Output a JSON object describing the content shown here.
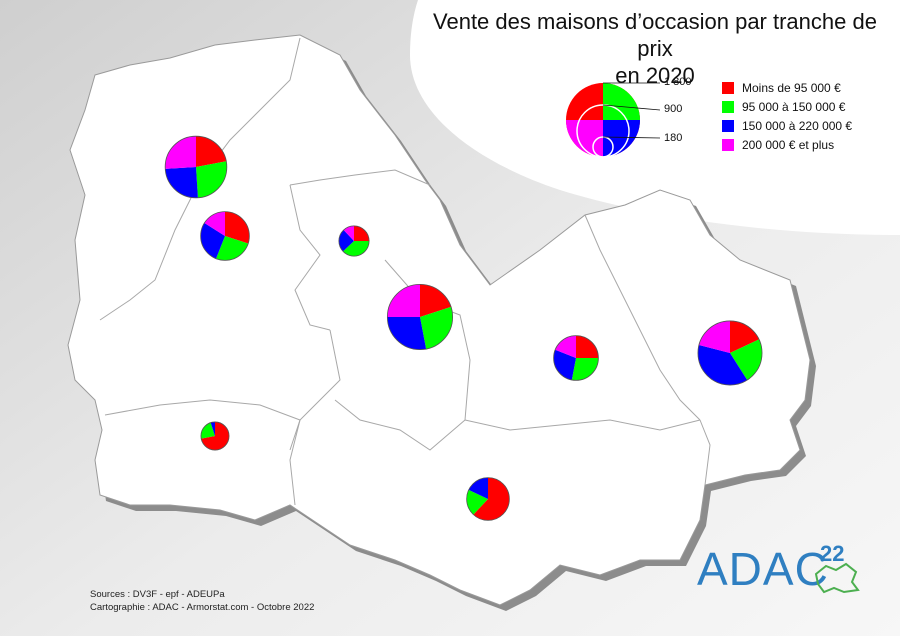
{
  "title": {
    "line1": "Vente des maisons d’occasion par tranche de prix",
    "line2": "en 2020"
  },
  "legend": {
    "items": [
      {
        "label": "Moins de 95 000 €",
        "color": "#ff0000"
      },
      {
        "label": "95 000 à 150 000 €",
        "color": "#00ff00"
      },
      {
        "label": "150 000 à 220 000 €",
        "color": "#0000ff"
      },
      {
        "label": "200 000 € et plus",
        "color": "#ff00ff"
      }
    ]
  },
  "size_scale": {
    "values": [
      "1 800",
      "900",
      "180"
    ]
  },
  "credits": {
    "sources": "Sources : DV3F - epf - ADEUPa",
    "cartography": "Cartographie : ADAC - Armorstat.com - Octobre 2022"
  },
  "logo": {
    "text": "ADAC",
    "superscript": "22"
  },
  "colors": {
    "map_fill": "#ffffff",
    "border": "#9a9a9a",
    "shadow": "#8c8c8c",
    "logo": "#2f7fc1"
  },
  "chart_data": {
    "type": "pie",
    "series_names": [
      "Moins de 95 000 €",
      "95 000 à 150 000 €",
      "150 000 à 220 000 €",
      "200 000 € et plus"
    ],
    "pies": [
      {
        "total": 1250,
        "shares": [
          0.22,
          0.27,
          0.25,
          0.26
        ]
      },
      {
        "total": 780,
        "shares": [
          0.3,
          0.26,
          0.28,
          0.16
        ]
      },
      {
        "total": 300,
        "shares": [
          0.25,
          0.38,
          0.25,
          0.12
        ]
      },
      {
        "total": 1400,
        "shares": [
          0.2,
          0.27,
          0.28,
          0.25
        ]
      },
      {
        "total": 660,
        "shares": [
          0.25,
          0.28,
          0.28,
          0.19
        ]
      },
      {
        "total": 1350,
        "shares": [
          0.18,
          0.23,
          0.38,
          0.21
        ]
      },
      {
        "total": 260,
        "shares": [
          0.72,
          0.23,
          0.05,
          0.0
        ]
      },
      {
        "total": 600,
        "shares": [
          0.62,
          0.2,
          0.18,
          0.0
        ]
      }
    ]
  }
}
